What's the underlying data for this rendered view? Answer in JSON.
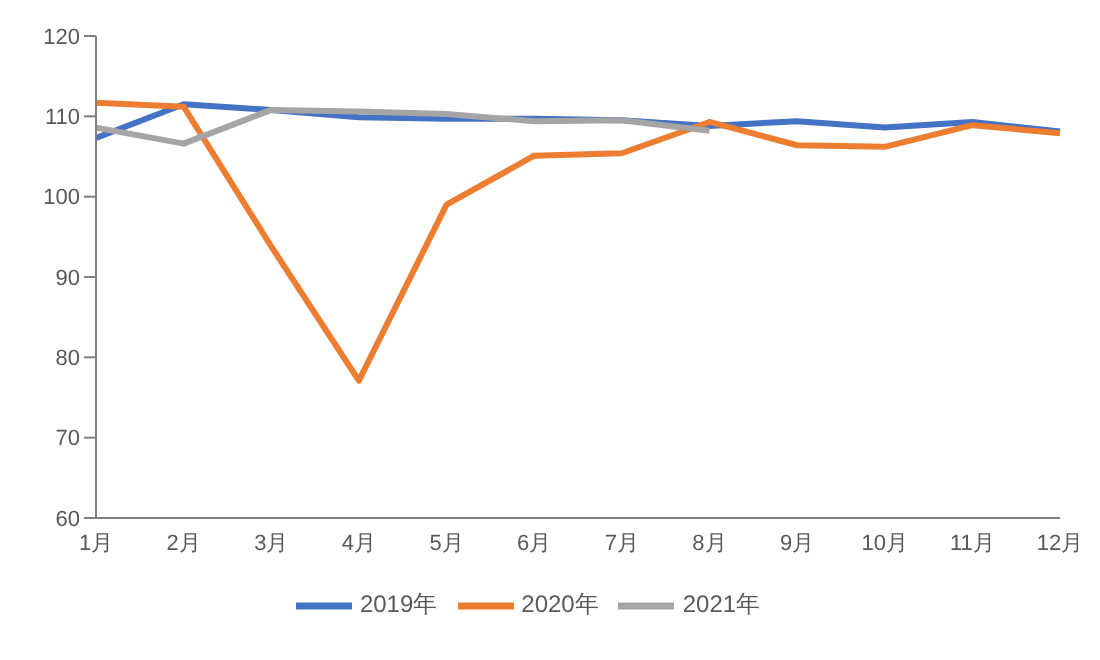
{
  "chart_data": {
    "type": "line",
    "categories": [
      "1月",
      "2月",
      "3月",
      "4月",
      "5月",
      "6月",
      "7月",
      "8月",
      "9月",
      "10月",
      "11月",
      "12月"
    ],
    "series": [
      {
        "name": "2019年",
        "color": "#4472c4",
        "values": [
          107.3,
          111.5,
          110.8,
          109.9,
          109.7,
          109.7,
          109.5,
          108.8,
          109.4,
          108.6,
          109.3,
          108.1
        ]
      },
      {
        "name": "2020年",
        "color": "#ed7d31",
        "values": [
          111.7,
          111.2,
          93.8,
          77.1,
          99.0,
          105.1,
          105.4,
          109.3,
          106.4,
          106.2,
          108.9,
          107.9
        ]
      },
      {
        "name": "2021年",
        "color": "#a5a5a5",
        "values": [
          108.6,
          106.6,
          110.8,
          110.6,
          110.3,
          109.4,
          109.5,
          108.2,
          null,
          null,
          null,
          null
        ]
      }
    ],
    "ylim": [
      60,
      120
    ],
    "yticks": [
      60,
      70,
      80,
      90,
      100,
      110,
      120
    ],
    "grid": false,
    "legend": "bottom",
    "marker": "none",
    "line_style": "solid"
  }
}
